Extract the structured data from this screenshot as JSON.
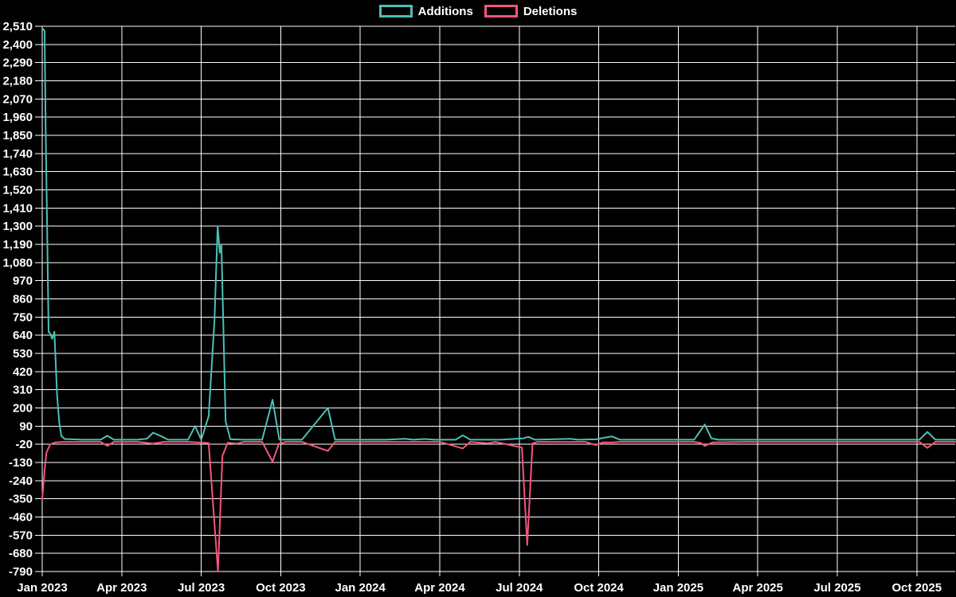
{
  "page": {
    "background": "#000000"
  },
  "legend": {
    "position": "top-center",
    "items": [
      "Additions",
      "Deletions"
    ]
  },
  "chart_data": {
    "type": "line",
    "title": "",
    "xlabel": "",
    "ylabel": "",
    "x_unit": "months_since_2023-01-01 (weekly code-frequency samples)",
    "grid": true,
    "legend_position": "top-center",
    "ylim": [
      -790,
      2510
    ],
    "colors": {
      "additions": "#4bc0b7",
      "deletions": "#f4557a",
      "grid": "#ffffff",
      "axis": "#ffffff",
      "text": "#ffffff",
      "background": "#000000"
    },
    "x_axis": {
      "labels": [
        "Jan 2023",
        "Apr 2023",
        "Jul 2023",
        "Oct 2023",
        "Jan 2024",
        "Apr 2024",
        "Jul 2024",
        "Oct 2024",
        "Jan 2025",
        "Apr 2025",
        "Jul 2025",
        "Oct 2025"
      ],
      "months_per_tick": 3
    },
    "y_axis": {
      "max": 2510,
      "min": -790,
      "step": 110,
      "labels": [
        "2,510",
        "2,400",
        "2,290",
        "2,180",
        "2,070",
        "1,960",
        "1,850",
        "1,740",
        "1,630",
        "1,520",
        "1,410",
        "1,300",
        "1,190",
        "1,080",
        "970",
        "860",
        "750",
        "640",
        "530",
        "420",
        "310",
        "200",
        "90",
        "-20",
        "-130",
        "-240",
        "-350",
        "-460",
        "-570",
        "-680",
        "-790"
      ]
    },
    "series": [
      {
        "name": "Additions",
        "color_key": "additions",
        "points": [
          [
            0.0,
            2500
          ],
          [
            0.09,
            2480
          ],
          [
            0.11,
            2150
          ],
          [
            0.13,
            1895
          ],
          [
            0.17,
            1450
          ],
          [
            0.24,
            660
          ],
          [
            0.3,
            650
          ],
          [
            0.38,
            618
          ],
          [
            0.46,
            662
          ],
          [
            0.56,
            280
          ],
          [
            0.64,
            115
          ],
          [
            0.72,
            30
          ],
          [
            0.85,
            12
          ],
          [
            1.5,
            8
          ],
          [
            2.2,
            8
          ],
          [
            2.46,
            32
          ],
          [
            2.7,
            8
          ],
          [
            3.6,
            8
          ],
          [
            3.95,
            14
          ],
          [
            4.18,
            50
          ],
          [
            4.5,
            28
          ],
          [
            4.75,
            8
          ],
          [
            5.5,
            8
          ],
          [
            5.77,
            90
          ],
          [
            6.0,
            8
          ],
          [
            6.28,
            150
          ],
          [
            6.5,
            730
          ],
          [
            6.62,
            1300
          ],
          [
            6.7,
            1140
          ],
          [
            6.76,
            1190
          ],
          [
            6.92,
            120
          ],
          [
            7.1,
            10
          ],
          [
            7.6,
            8
          ],
          [
            8.3,
            8
          ],
          [
            8.69,
            250
          ],
          [
            8.95,
            8
          ],
          [
            9.8,
            8
          ],
          [
            10.78,
            200
          ],
          [
            11.05,
            8
          ],
          [
            12.0,
            8
          ],
          [
            13.0,
            8
          ],
          [
            13.68,
            13
          ],
          [
            14.0,
            8
          ],
          [
            14.43,
            12
          ],
          [
            14.8,
            8
          ],
          [
            15.6,
            8
          ],
          [
            15.87,
            35
          ],
          [
            16.15,
            8
          ],
          [
            17.3,
            8
          ],
          [
            18.15,
            16
          ],
          [
            18.34,
            25
          ],
          [
            18.6,
            8
          ],
          [
            19.93,
            13
          ],
          [
            20.2,
            8
          ],
          [
            20.9,
            10
          ],
          [
            21.49,
            28
          ],
          [
            21.8,
            8
          ],
          [
            23.0,
            8
          ],
          [
            24.6,
            8
          ],
          [
            25.0,
            100
          ],
          [
            25.25,
            16
          ],
          [
            25.5,
            8
          ],
          [
            26.5,
            8
          ],
          [
            28.0,
            8
          ],
          [
            30.0,
            8
          ],
          [
            32.0,
            8
          ],
          [
            33.1,
            8
          ],
          [
            33.4,
            55
          ],
          [
            33.7,
            8
          ],
          [
            34.45,
            8
          ]
        ]
      },
      {
        "name": "Deletions",
        "color_key": "deletions",
        "points": [
          [
            0.0,
            -350
          ],
          [
            0.09,
            -175
          ],
          [
            0.16,
            -70
          ],
          [
            0.3,
            -20
          ],
          [
            0.5,
            -8
          ],
          [
            0.8,
            -5
          ],
          [
            1.5,
            -5
          ],
          [
            2.2,
            -5
          ],
          [
            2.46,
            -30
          ],
          [
            2.7,
            -5
          ],
          [
            3.6,
            -5
          ],
          [
            4.18,
            -16
          ],
          [
            4.6,
            -5
          ],
          [
            5.5,
            -5
          ],
          [
            6.28,
            -12
          ],
          [
            6.48,
            -460
          ],
          [
            6.63,
            -790
          ],
          [
            6.8,
            -90
          ],
          [
            7.0,
            -10
          ],
          [
            7.35,
            -16
          ],
          [
            7.6,
            -5
          ],
          [
            8.3,
            -5
          ],
          [
            8.69,
            -125
          ],
          [
            8.93,
            -16
          ],
          [
            9.2,
            -5
          ],
          [
            9.8,
            -5
          ],
          [
            10.78,
            -60
          ],
          [
            11.05,
            -5
          ],
          [
            12.0,
            -5
          ],
          [
            13.0,
            -5
          ],
          [
            14.0,
            -5
          ],
          [
            15.0,
            -5
          ],
          [
            15.87,
            -45
          ],
          [
            16.15,
            -5
          ],
          [
            16.83,
            -14
          ],
          [
            17.1,
            -5
          ],
          [
            18.1,
            -40
          ],
          [
            18.3,
            -630
          ],
          [
            18.5,
            -15
          ],
          [
            18.7,
            -5
          ],
          [
            19.5,
            -5
          ],
          [
            20.5,
            -5
          ],
          [
            20.89,
            -25
          ],
          [
            21.15,
            -8
          ],
          [
            21.49,
            -9
          ],
          [
            21.8,
            -5
          ],
          [
            23.0,
            -5
          ],
          [
            24.6,
            -5
          ],
          [
            24.85,
            -12
          ],
          [
            25.0,
            -30
          ],
          [
            25.3,
            -8
          ],
          [
            26.5,
            -5
          ],
          [
            28.0,
            -5
          ],
          [
            30.0,
            -5
          ],
          [
            32.0,
            -5
          ],
          [
            33.1,
            -5
          ],
          [
            33.4,
            -42
          ],
          [
            33.7,
            -5
          ],
          [
            34.45,
            -5
          ]
        ]
      }
    ]
  }
}
